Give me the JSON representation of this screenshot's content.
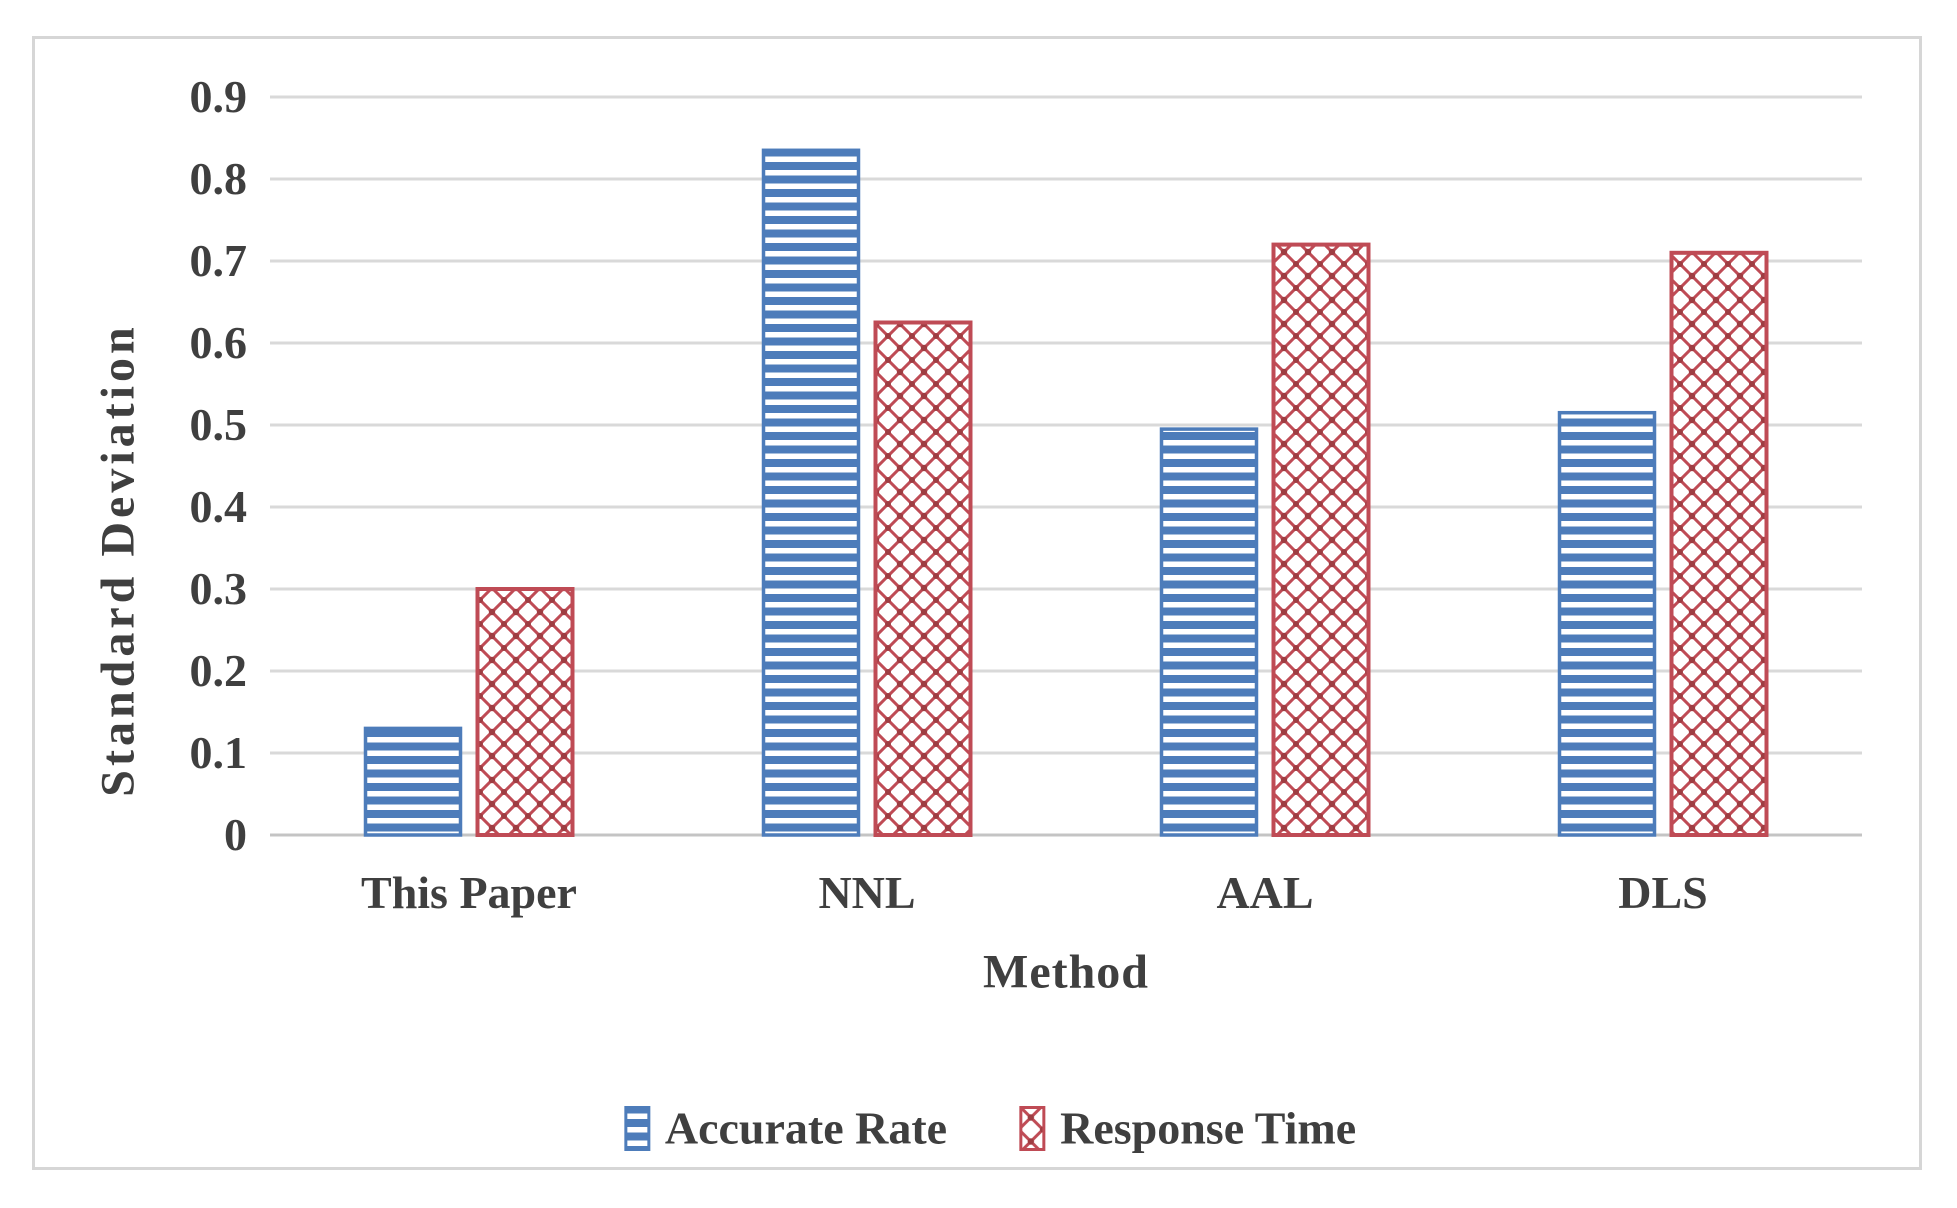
{
  "chart_data": {
    "type": "bar",
    "title": "",
    "xlabel": "Method",
    "ylabel": "Standard Deviation",
    "categories": [
      "This Paper",
      "NNL",
      "AAL",
      "DLS"
    ],
    "series": [
      {
        "name": "Accurate Rate",
        "pattern": "horizontal-stripes",
        "color": "#4D7CBA",
        "values": [
          0.13,
          0.835,
          0.495,
          0.515
        ]
      },
      {
        "name": "Response Time",
        "pattern": "diagonal-crosshatch",
        "color": "#BF4B55",
        "pattern_dot_color": "#9E3D42",
        "values": [
          0.3,
          0.625,
          0.72,
          0.71
        ]
      }
    ],
    "ylim": [
      0,
      0.9
    ],
    "yticks": [
      "0",
      "0.1",
      "0.2",
      "0.3",
      "0.4",
      "0.5",
      "0.6",
      "0.7",
      "0.8",
      "0.9"
    ],
    "grid": "horizontal",
    "grid_color": "#D9D9D9",
    "baseline_color": "#C4C4C4",
    "text_color": "#3F3F3F",
    "frame_border_color": "#D6D6D6",
    "background_color": "#FFFFFF",
    "legend_position": "bottom"
  }
}
